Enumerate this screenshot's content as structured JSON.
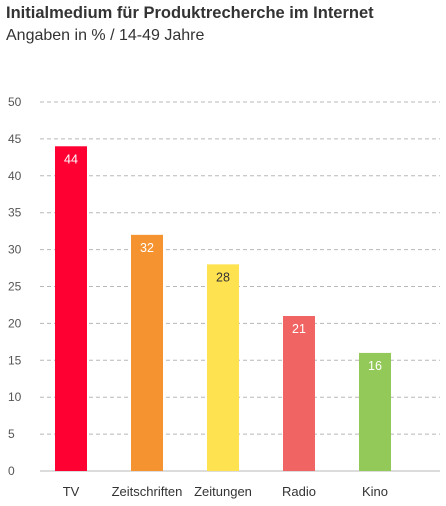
{
  "chart_data": {
    "type": "bar",
    "title": "Initialmedium für Produktrecherche im Internet",
    "subtitle": "Angaben in % / 14-49 Jahre",
    "categories": [
      "TV",
      "Zeitschriften",
      "Zeitungen",
      "Radio",
      "Kino"
    ],
    "values": [
      44,
      32,
      28,
      21,
      16
    ],
    "data_labels": [
      "44",
      "32",
      "28",
      "21",
      "16"
    ],
    "colors": [
      "#ff0033",
      "#f59331",
      "#ffe250",
      "#f06463",
      "#93c958"
    ],
    "label_colors": [
      "#ffffff",
      "#ffffff",
      "#333333",
      "#ffffff",
      "#ffffff"
    ],
    "ylim": [
      0,
      50
    ],
    "yticks": [
      "0",
      "5",
      "10",
      "15",
      "20",
      "25",
      "30",
      "35",
      "40",
      "45",
      "50"
    ],
    "grid": true,
    "grid_style": "dashed",
    "legend": "none"
  }
}
